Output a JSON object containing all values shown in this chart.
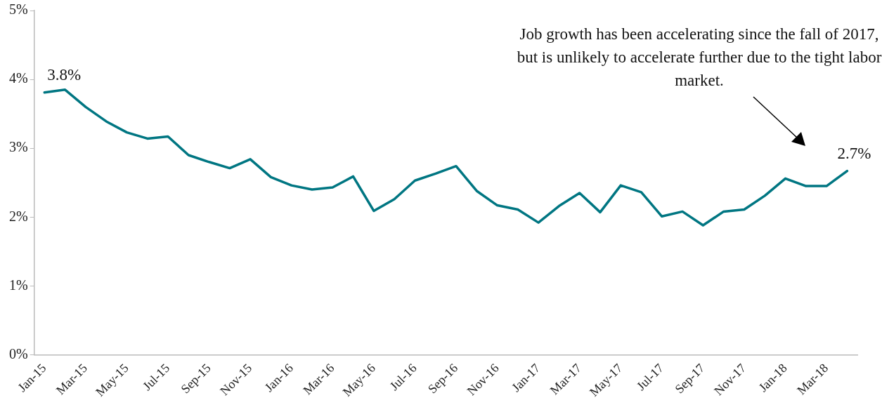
{
  "chart_data": {
    "type": "line",
    "categories": [
      "Jan-15",
      null,
      "Mar-15",
      null,
      "May-15",
      null,
      "Jul-15",
      null,
      "Sep-15",
      null,
      "Nov-15",
      null,
      "Jan-16",
      null,
      "Mar-16",
      null,
      "May-16",
      null,
      "Jul-16",
      null,
      "Sep-16",
      null,
      "Nov-16",
      null,
      "Jan-17",
      null,
      "Mar-17",
      null,
      "May-17",
      null,
      "Jul-17",
      null,
      "Sep-17",
      null,
      "Nov-17",
      null,
      "Jan-18",
      null,
      "Mar-18",
      null
    ],
    "series": [
      {
        "color": "#007682",
        "values": [
          3.81,
          3.85,
          3.6,
          3.39,
          3.23,
          3.14,
          3.17,
          2.9,
          2.8,
          2.71,
          2.84,
          2.58,
          2.46,
          2.4,
          2.43,
          2.59,
          2.09,
          2.26,
          2.53,
          2.63,
          2.74,
          2.38,
          2.17,
          2.11,
          1.92,
          2.16,
          2.35,
          2.07,
          2.46,
          2.36,
          2.01,
          2.08,
          1.88,
          2.08,
          2.11,
          2.31,
          2.56,
          2.45,
          2.45,
          2.67
        ],
        "value_labels": [
          "3.8%",
          null,
          null,
          null,
          null,
          null,
          null,
          null,
          null,
          null,
          null,
          null,
          null,
          null,
          null,
          null,
          null,
          null,
          null,
          null,
          null,
          null,
          null,
          null,
          null,
          null,
          null,
          null,
          null,
          null,
          null,
          null,
          null,
          null,
          null,
          null,
          null,
          null,
          null,
          "2.7%"
        ]
      }
    ],
    "ylim": [
      0,
      5
    ],
    "yticks": [
      {
        "value": 0,
        "label": "0%"
      },
      {
        "value": 1,
        "label": "1%"
      },
      {
        "value": 2,
        "label": "2%"
      },
      {
        "value": 3,
        "label": "3%"
      },
      {
        "value": 4,
        "label": "4%"
      },
      {
        "value": 5,
        "label": "5%"
      }
    ],
    "grid": false,
    "legend": false,
    "marker": "none",
    "line_style": "solid",
    "annotations": [
      "Job growth has been accelerating since the fall of 2017, but is unlikely to accelerate further due to the tight labor market."
    ]
  }
}
